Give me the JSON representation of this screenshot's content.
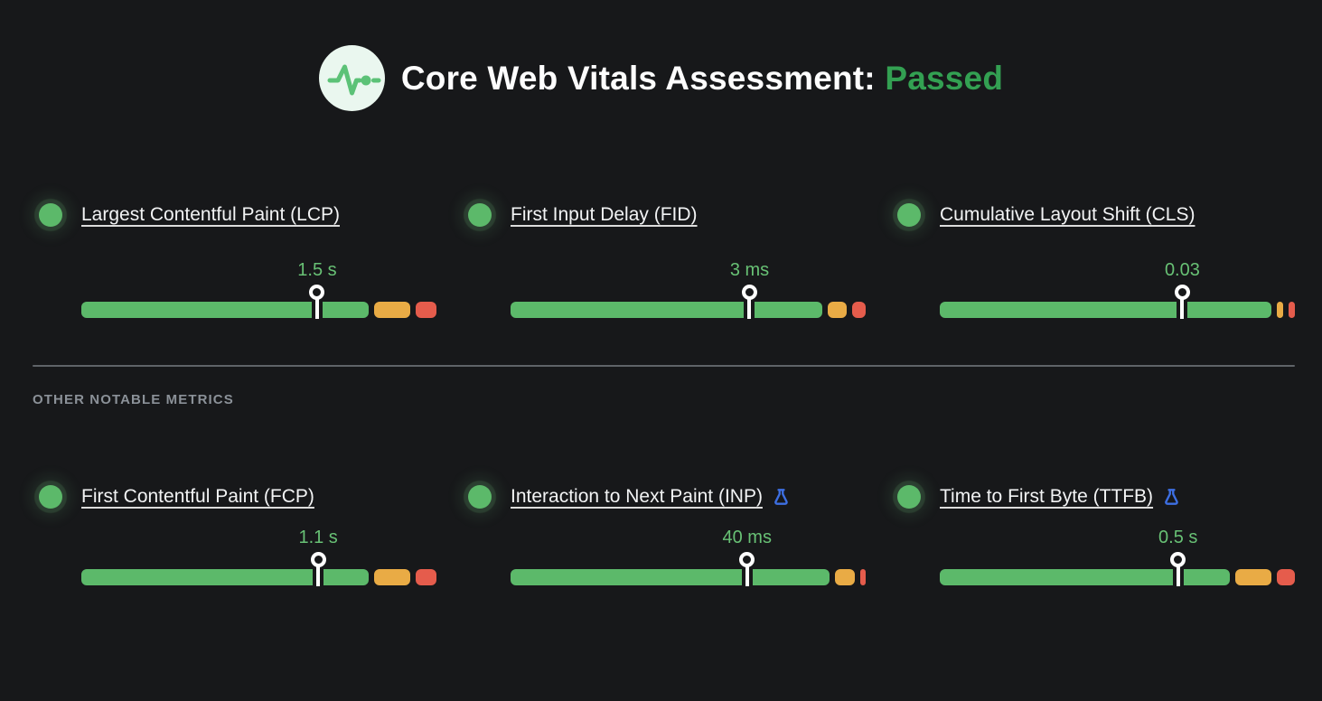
{
  "header": {
    "icon": "pulse-icon",
    "title": "Core Web Vitals Assessment:",
    "status": "Passed"
  },
  "section_label": "OTHER NOTABLE METRICS",
  "colors": {
    "background": "#17181a",
    "good": "#5cb96a",
    "needs_improvement": "#e9ab45",
    "poor": "#e55c4c",
    "value_text": "#68c175",
    "passed_text": "#33a052",
    "experimental_blue": "#3d6fe3",
    "divider": "#5f6368",
    "muted_text": "#8b9198",
    "title_text": "#f2f3f4"
  },
  "metrics": [
    {
      "id": "lcp",
      "label": "Largest Contentful Paint (LCP)",
      "value": "1.5 s",
      "status": "good",
      "experimental": false,
      "marker_pct": 66.4,
      "distribution": {
        "good": 81.5,
        "needs_improvement": 10.2,
        "poor": 5.9
      }
    },
    {
      "id": "fid",
      "label": "First Input Delay (FID)",
      "value": "3 ms",
      "status": "good",
      "experimental": false,
      "marker_pct": 67.3,
      "distribution": {
        "good": 88.5,
        "needs_improvement": 5.2,
        "poor": 3.9
      }
    },
    {
      "id": "cls",
      "label": "Cumulative Layout Shift (CLS)",
      "value": "0.03",
      "status": "good",
      "experimental": false,
      "marker_pct": 68.3,
      "distribution": {
        "good": 93.8,
        "needs_improvement": 1.8,
        "poor": 1.8
      }
    },
    {
      "id": "fcp",
      "label": "First Contentful Paint (FCP)",
      "value": "1.1 s",
      "status": "good",
      "experimental": false,
      "marker_pct": 66.7,
      "distribution": {
        "good": 81.5,
        "needs_improvement": 10.2,
        "poor": 5.9
      }
    },
    {
      "id": "inp",
      "label": "Interaction to Next Paint (INP)",
      "value": "40 ms",
      "status": "good",
      "experimental": true,
      "marker_pct": 66.6,
      "distribution": {
        "good": 90.6,
        "needs_improvement": 5.6,
        "poor": 1.5
      }
    },
    {
      "id": "ttfb",
      "label": "Time to First Byte (TTFB)",
      "value": "0.5 s",
      "status": "good",
      "experimental": true,
      "marker_pct": 67.1,
      "distribution": {
        "good": 81.0,
        "needs_improvement": 10.0,
        "poor": 5.0
      }
    }
  ]
}
